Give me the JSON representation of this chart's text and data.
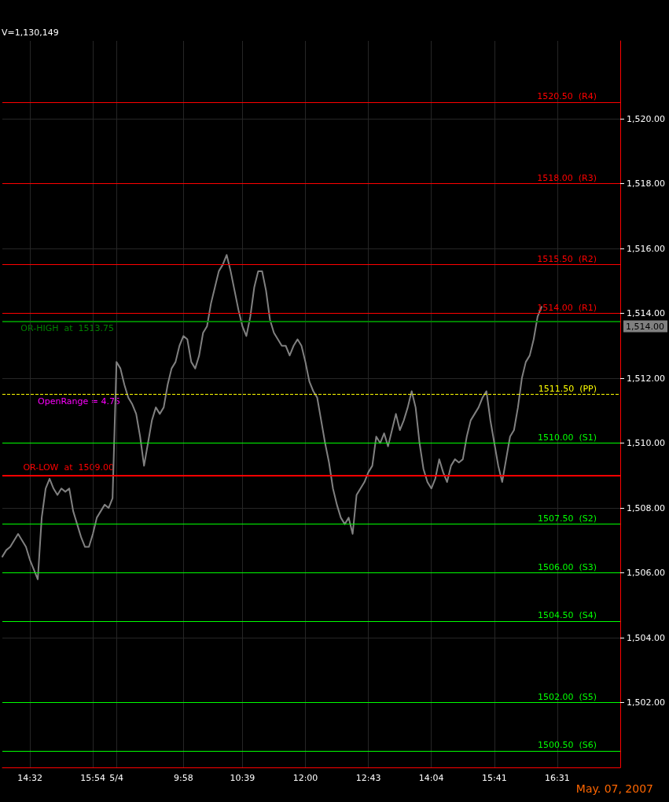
{
  "chart_data": {
    "type": "line",
    "categories": [
      null,
      null,
      null,
      null,
      null,
      null,
      null,
      "14:32",
      null,
      null,
      null,
      null,
      null,
      null,
      null,
      null,
      null,
      null,
      null,
      null,
      null,
      null,
      null,
      "15:54",
      null,
      null,
      null,
      null,
      null,
      "5/4",
      null,
      null,
      null,
      null,
      null,
      null,
      null,
      null,
      null,
      null,
      null,
      null,
      null,
      null,
      null,
      null,
      "9:58",
      null,
      null,
      null,
      null,
      null,
      null,
      null,
      null,
      null,
      null,
      null,
      null,
      null,
      null,
      "10:39",
      null,
      null,
      null,
      null,
      null,
      null,
      null,
      null,
      null,
      null,
      null,
      null,
      null,
      null,
      null,
      "12:00",
      null,
      null,
      null,
      null,
      null,
      null,
      null,
      null,
      null,
      null,
      null,
      null,
      null,
      null,
      null,
      "12:43",
      null,
      null,
      null,
      null,
      null,
      null,
      null,
      null,
      null,
      null,
      null,
      null,
      null,
      null,
      null,
      "14:04",
      null,
      null,
      null,
      null,
      null,
      null,
      null,
      null,
      null,
      null,
      null,
      null,
      null,
      null,
      null,
      "15:41",
      null,
      null,
      null,
      null,
      null,
      null,
      null,
      null,
      null,
      null,
      null,
      null,
      null,
      null,
      null,
      "16:31",
      null,
      null,
      null,
      null,
      null,
      null,
      null,
      null,
      null,
      null,
      null,
      null,
      null,
      null,
      null,
      null
    ],
    "series": [
      {
        "color": "#808080",
        "values": [
          1506.5,
          1506.7,
          1506.8,
          1507.0,
          1507.2,
          1507.0,
          1506.8,
          1506.4,
          1506.1,
          1505.8,
          1507.7,
          1508.6,
          1508.9,
          1508.6,
          1508.4,
          1508.6,
          1508.5,
          1508.6,
          1507.9,
          1507.5,
          1507.1,
          1506.8,
          1506.8,
          1507.2,
          1507.7,
          1507.9,
          1508.1,
          1508.0,
          1508.3,
          1512.5,
          1512.3,
          1511.8,
          1511.4,
          1511.2,
          1510.9,
          1510.2,
          1509.3,
          1510.0,
          1510.7,
          1511.1,
          1510.9,
          1511.1,
          1511.8,
          1512.3,
          1512.5,
          1513.0,
          1513.3,
          1513.2,
          1512.5,
          1512.3,
          1512.7,
          1513.4,
          1513.6,
          1514.3,
          1514.8,
          1515.3,
          1515.5,
          1515.8,
          1515.3,
          1514.7,
          1514.1,
          1513.6,
          1513.3,
          1513.9,
          1514.8,
          1515.3,
          1515.3,
          1514.7,
          1513.8,
          1513.4,
          1513.2,
          1513.0,
          1513.0,
          1512.7,
          1513.0,
          1513.2,
          1513.0,
          1512.5,
          1511.9,
          1511.6,
          1511.4,
          1510.7,
          1510.0,
          1509.4,
          1508.6,
          1508.1,
          1507.7,
          1507.5,
          1507.7,
          1507.2,
          1508.4,
          1508.6,
          1508.8,
          1509.1,
          1509.3,
          1510.2,
          1510.0,
          1510.3,
          1509.9,
          1510.4,
          1510.9,
          1510.4,
          1510.7,
          1511.1,
          1511.6,
          1511.1,
          1510.0,
          1509.2,
          1508.8,
          1508.6,
          1508.9,
          1509.5,
          1509.1,
          1508.8,
          1509.3,
          1509.5,
          1509.4,
          1509.5,
          1510.2,
          1510.7,
          1510.9,
          1511.1,
          1511.4,
          1511.6,
          1510.7,
          1510.0,
          1509.3,
          1508.8,
          1509.5,
          1510.2,
          1510.4,
          1511.1,
          1512.0,
          1512.5,
          1512.7,
          1513.2,
          1513.9,
          1514.2,
          null,
          null,
          null,
          null,
          null,
          null,
          null,
          null,
          null,
          null,
          null,
          null,
          null,
          null,
          null,
          null,
          null,
          null,
          null,
          null
        ]
      }
    ],
    "ylim": [
      1500,
      1522.4
    ],
    "yticks": [
      {
        "value": 1502,
        "label": "1,502.00"
      },
      {
        "value": 1504,
        "label": "1,504.00"
      },
      {
        "value": 1506,
        "label": "1,506.00"
      },
      {
        "value": 1508,
        "label": "1,508.00"
      },
      {
        "value": 1510,
        "label": "1,510.00"
      },
      {
        "value": 1512,
        "label": "1,512.00"
      },
      {
        "value": 1514,
        "label": "1,514.00"
      },
      {
        "value": 1516,
        "label": "1,516.00"
      },
      {
        "value": 1518,
        "label": "1,518.00"
      },
      {
        "value": 1520,
        "label": "1,520.00"
      }
    ],
    "ref_lines": [
      {
        "axis": "y",
        "value": 1520.5,
        "label": "1520.50  (R4)",
        "color": "#ff0000"
      },
      {
        "axis": "y",
        "value": 1518,
        "label": "1518.00  (R3)",
        "color": "#ff0000"
      },
      {
        "axis": "y",
        "value": 1515.5,
        "label": "1515.50  (R2)",
        "color": "#ff0000"
      },
      {
        "axis": "y",
        "value": 1514,
        "label": "1514.00  (R1)",
        "color": "#ff0000"
      },
      {
        "axis": "y",
        "value": 1513.75,
        "color": "#008000"
      },
      {
        "axis": "y",
        "value": 1511.5,
        "label": "1511.50  (PP)",
        "color": "#ffff00",
        "line_style": "dashed"
      },
      {
        "axis": "y",
        "value": 1510,
        "label": "1510.00  (S1)",
        "color": "#00ff00"
      },
      {
        "axis": "y",
        "value": 1509,
        "color": "#ff0000"
      },
      {
        "axis": "y",
        "value": 1507.5,
        "label": "1507.50  (S2)",
        "color": "#00ff00"
      },
      {
        "axis": "y",
        "value": 1506,
        "label": "1506.00  (S3)",
        "color": "#00ff00"
      },
      {
        "axis": "y",
        "value": 1504.5,
        "label": "1504.50  (S4)",
        "color": "#00ff00"
      },
      {
        "axis": "y",
        "value": 1502,
        "label": "1502.00  (S5)",
        "color": "#00ff00"
      },
      {
        "axis": "y",
        "value": 1500.5,
        "label": "1500.50  (S6)",
        "color": "#00ff00"
      }
    ],
    "annotations": [
      "V=1,130,149",
      {
        "text": "OR-HIGH  at  1513.75",
        "y": 1513.75
      },
      "OpenRange = 4.75",
      {
        "text": "OR-LOW  at  1509.00",
        "y": 1509
      },
      "May. 07, 2007",
      "1,514.00"
    ],
    "grid": true,
    "marker": "none",
    "line_style": "solid"
  }
}
